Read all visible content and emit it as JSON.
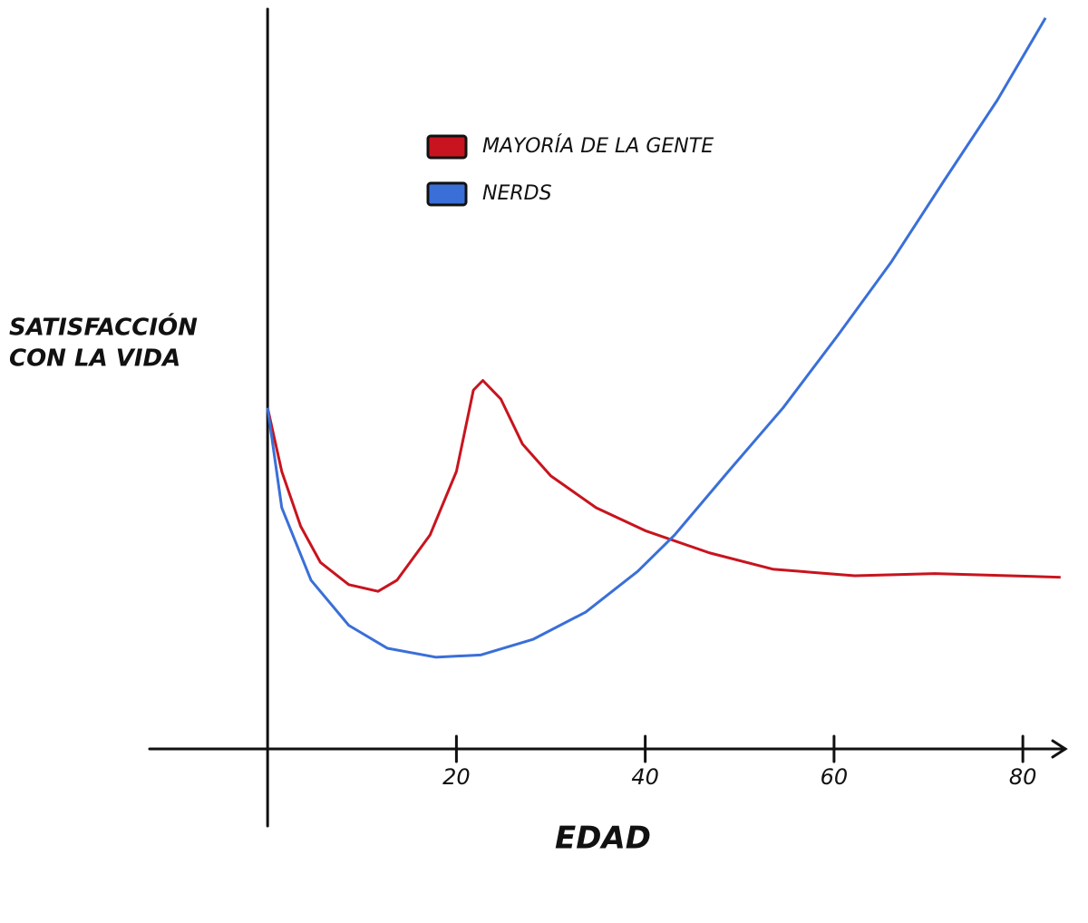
{
  "chart_data": {
    "type": "line",
    "xlabel": "EDAD",
    "ylabel": [
      "SATISFACCIÓN",
      "CON LA VIDA"
    ],
    "xlim": [
      -12.5,
      84.5
    ],
    "ylim": [
      0,
      100
    ],
    "xticks": [
      20,
      40,
      60,
      80
    ],
    "legend": "top-center",
    "series": [
      {
        "name": "MAYORÍA DE LA GENTE",
        "color": "#c8141e",
        "x": [
          0,
          1.5,
          3.5,
          5.6,
          8.6,
          11.7,
          13.7,
          17.2,
          20,
          21.8,
          22.8,
          24.7,
          27,
          30,
          34.8,
          40,
          46.8,
          53.5,
          62.2,
          70.7,
          84
        ],
        "values": [
          46.1,
          37.5,
          30.1,
          25.2,
          22.2,
          21.3,
          22.8,
          28.9,
          37.5,
          48.5,
          49.8,
          47.3,
          41.2,
          36.9,
          32.6,
          29.5,
          26.5,
          24.3,
          23.4,
          23.7,
          23.2
        ]
      },
      {
        "name": "NERDS",
        "color": "#3a6fd8",
        "x": [
          0,
          1.5,
          4.6,
          8.6,
          12.7,
          17.8,
          22.6,
          28.1,
          33.7,
          39.2,
          43.1,
          48.8,
          54.6,
          60.4,
          66,
          71.6,
          77.3,
          82.4
        ],
        "values": [
          46.1,
          32.6,
          22.8,
          16.7,
          13.6,
          12.4,
          12.7,
          14.8,
          18.5,
          24,
          28.9,
          37.5,
          46.1,
          55.9,
          65.7,
          76.7,
          87.7,
          98.8
        ]
      }
    ]
  }
}
